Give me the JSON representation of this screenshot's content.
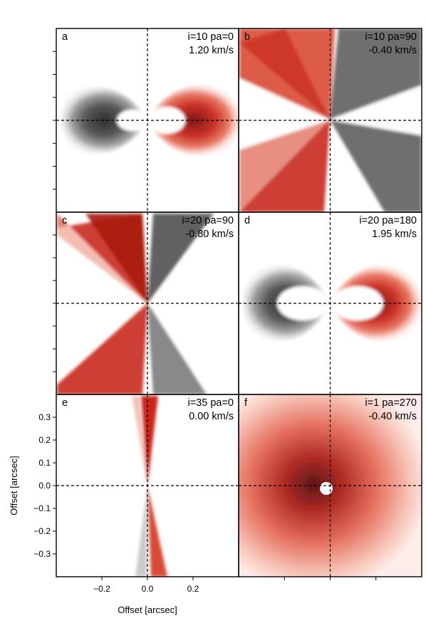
{
  "chart_data": {
    "type": "heatmap",
    "xlabel": "Offset [arcsec]",
    "ylabel": "Offset [arcsec]",
    "xlim": [
      -0.4,
      0.4
    ],
    "ylim": [
      -0.4,
      0.4
    ],
    "xticks": [
      -0.2,
      0.0,
      0.2
    ],
    "xtick_labels": [
      "−0.2",
      "0.0",
      "0.2"
    ],
    "yticks": [
      0.3,
      0.2,
      0.1,
      0.0,
      -0.1,
      -0.2,
      -0.3
    ],
    "ytick_labels": [
      "0.3",
      "0.2",
      "0.1",
      "0.0",
      "−0.1",
      "−0.2",
      "−0.3"
    ],
    "grid": false,
    "colors": {
      "red": "#c8281c",
      "dark_red": "#7a0a08",
      "gray": "#3c3c3c",
      "axes": "#000000"
    },
    "panels": [
      {
        "letter": "a",
        "params": "i=10 pa=0",
        "velocity": "1.20 km/s",
        "pattern": "lobes-horizontal",
        "inclination": 10,
        "pa": 0
      },
      {
        "letter": "b",
        "params": "i=10 pa=90",
        "velocity": "-0.40 km/s",
        "pattern": "x-cross",
        "inclination": 10,
        "pa": 90
      },
      {
        "letter": "c",
        "params": "i=20 pa=90",
        "velocity": "-0.80 km/s",
        "pattern": "x-cross-narrow",
        "inclination": 20,
        "pa": 90
      },
      {
        "letter": "d",
        "params": "i=20 pa=180",
        "velocity": "1.95 km/s",
        "pattern": "lobes-horizontal",
        "inclination": 20,
        "pa": 180
      },
      {
        "letter": "e",
        "params": "i=35 pa=0",
        "velocity": "0.00 km/s",
        "pattern": "vertical-spindle",
        "inclination": 35,
        "pa": 0
      },
      {
        "letter": "f",
        "params": "i=1 pa=270",
        "velocity": "-0.40 km/s",
        "pattern": "radial-blob",
        "inclination": 1,
        "pa": 270
      }
    ]
  }
}
